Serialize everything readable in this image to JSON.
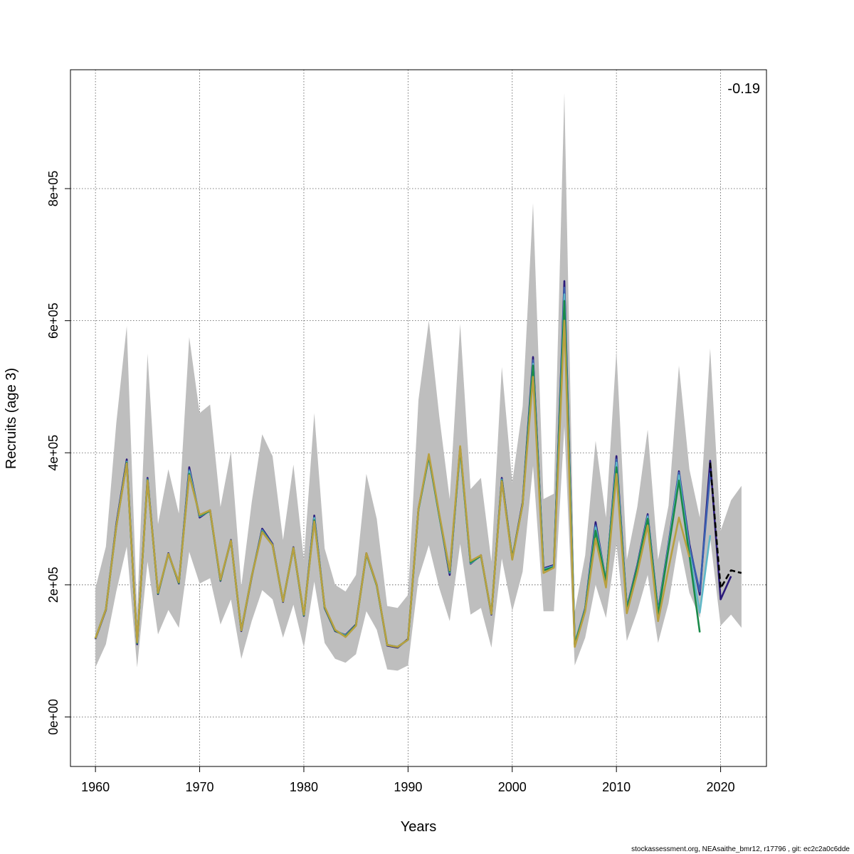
{
  "chart_data": {
    "type": "line",
    "xlabel": "Years",
    "ylabel": "Recruits (age 3)",
    "xlim": [
      1957.6,
      2024.4
    ],
    "ylim": [
      -75000,
      980000
    ],
    "x_ticks": [
      1960,
      1970,
      1980,
      1990,
      2000,
      2010,
      2020
    ],
    "x_tick_labels": [
      "1960",
      "1970",
      "1980",
      "1990",
      "2000",
      "2010",
      "2020"
    ],
    "y_ticks": [
      0,
      200000,
      400000,
      600000,
      800000
    ],
    "y_tick_labels": [
      "0e+00",
      "2e+05",
      "4e+05",
      "6e+05",
      "8e+05"
    ],
    "grid": true,
    "annotation": "-0.19",
    "footer": "stockassessment.org, NEAsaithe_bmr12, r17796 , git: ec2c2a0c6dde",
    "band": {
      "color": "#bebebe",
      "x": [
        1960,
        1961,
        1962,
        1963,
        1964,
        1965,
        1966,
        1967,
        1968,
        1969,
        1970,
        1971,
        1972,
        1973,
        1974,
        1975,
        1976,
        1977,
        1978,
        1979,
        1980,
        1981,
        1982,
        1983,
        1984,
        1985,
        1986,
        1987,
        1988,
        1989,
        1990,
        1991,
        1992,
        1993,
        1994,
        1995,
        1996,
        1997,
        1998,
        1999,
        2000,
        2001,
        2002,
        2003,
        2004,
        2005,
        2006,
        2007,
        2008,
        2009,
        2010,
        2011,
        2012,
        2013,
        2014,
        2015,
        2016,
        2017,
        2018,
        2019,
        2020,
        2021,
        2022
      ],
      "upper": [
        195000,
        258000,
        445000,
        592000,
        158000,
        550000,
        292000,
        375000,
        308000,
        575000,
        460000,
        473000,
        318000,
        402000,
        198000,
        325000,
        428000,
        395000,
        268000,
        382000,
        238000,
        460000,
        255000,
        200000,
        190000,
        215000,
        368000,
        300000,
        168000,
        165000,
        185000,
        480000,
        600000,
        455000,
        330000,
        595000,
        345000,
        362000,
        235000,
        530000,
        355000,
        470000,
        778000,
        330000,
        338000,
        945000,
        160000,
        245000,
        418000,
        302000,
        555000,
        238000,
        318000,
        435000,
        238000,
        320000,
        532000,
        375000,
        302000,
        558000,
        282000,
        328000,
        350000
      ],
      "lower": [
        75000,
        110000,
        190000,
        258000,
        75000,
        235000,
        125000,
        162000,
        135000,
        250000,
        202000,
        210000,
        140000,
        178000,
        88000,
        145000,
        192000,
        178000,
        120000,
        170000,
        105000,
        205000,
        112000,
        88000,
        82000,
        95000,
        160000,
        132000,
        72000,
        70000,
        78000,
        210000,
        260000,
        195000,
        145000,
        262000,
        155000,
        165000,
        105000,
        240000,
        160000,
        220000,
        380000,
        160000,
        160000,
        440000,
        78000,
        120000,
        200000,
        150000,
        262000,
        115000,
        160000,
        215000,
        112000,
        172000,
        268000,
        188000,
        150000,
        272000,
        138000,
        155000,
        135000
      ]
    },
    "series": [
      {
        "color": "#2b1a7a",
        "x": [
          1960,
          1961,
          1962,
          1963,
          1964,
          1965,
          1966,
          1967,
          1968,
          1969,
          1970,
          1971,
          1972,
          1973,
          1974,
          1975,
          1976,
          1977,
          1978,
          1979,
          1980,
          1981,
          1982,
          1983,
          1984,
          1985,
          1986,
          1987,
          1988,
          1989,
          1990,
          1991,
          1992,
          1993,
          1994,
          1995,
          1996,
          1997,
          1998,
          1999,
          2000,
          2001,
          2002,
          2003,
          2004,
          2005,
          2006,
          2007,
          2008,
          2009,
          2010,
          2011,
          2012,
          2013,
          2014,
          2015,
          2016,
          2017,
          2018,
          2019,
          2020,
          2021
        ],
        "values": [
          118000,
          162000,
          292000,
          390000,
          110000,
          362000,
          186000,
          248000,
          202000,
          378000,
          302000,
          313000,
          206000,
          268000,
          130000,
          212000,
          285000,
          262000,
          174000,
          257000,
          153000,
          305000,
          165000,
          130000,
          124000,
          140000,
          248000,
          200000,
          108000,
          105000,
          118000,
          315000,
          395000,
          305000,
          215000,
          408000,
          232000,
          245000,
          155000,
          362000,
          240000,
          325000,
          545000,
          225000,
          230000,
          660000,
          110000,
          165000,
          295000,
          205000,
          395000,
          165000,
          230000,
          307000,
          160000,
          262000,
          372000,
          262000,
          185000,
          388000,
          178000,
          213000
        ]
      },
      {
        "color": "#3b5fb0",
        "x": [
          1960,
          1961,
          1962,
          1963,
          1964,
          1965,
          1966,
          1967,
          1968,
          1969,
          1970,
          1971,
          1972,
          1973,
          1974,
          1975,
          1976,
          1977,
          1978,
          1979,
          1980,
          1981,
          1982,
          1983,
          1984,
          1985,
          1986,
          1987,
          1988,
          1989,
          1990,
          1991,
          1992,
          1993,
          1994,
          1995,
          1996,
          1997,
          1998,
          1999,
          2000,
          2001,
          2002,
          2003,
          2004,
          2005,
          2006,
          2007,
          2008,
          2009,
          2010,
          2011,
          2012,
          2013,
          2014,
          2015,
          2016,
          2017,
          2018,
          2019
        ],
        "values": [
          119000,
          163000,
          290000,
          387000,
          112000,
          360000,
          187000,
          247000,
          203000,
          374000,
          304000,
          312000,
          207000,
          267000,
          131000,
          213000,
          283000,
          261000,
          175000,
          256000,
          154000,
          302000,
          166000,
          131000,
          123000,
          139000,
          247000,
          199000,
          109000,
          106000,
          117000,
          314000,
          394000,
          304000,
          218000,
          406000,
          233000,
          244000,
          156000,
          360000,
          239000,
          323000,
          540000,
          224000,
          229000,
          650000,
          111000,
          164000,
          290000,
          206000,
          390000,
          164000,
          228000,
          305000,
          158000,
          260000,
          370000,
          258000,
          190000,
          370000
        ]
      },
      {
        "color": "#5fb8c8",
        "x": [
          1960,
          1961,
          1962,
          1963,
          1964,
          1965,
          1966,
          1967,
          1968,
          1969,
          1970,
          1971,
          1972,
          1973,
          1974,
          1975,
          1976,
          1977,
          1978,
          1979,
          1980,
          1981,
          1982,
          1983,
          1984,
          1985,
          1986,
          1987,
          1988,
          1989,
          1990,
          1991,
          1992,
          1993,
          1994,
          1995,
          1996,
          1997,
          1998,
          1999,
          2000,
          2001,
          2002,
          2003,
          2004,
          2005,
          2006,
          2007,
          2008,
          2009,
          2010,
          2011,
          2012,
          2013,
          2014,
          2015,
          2016,
          2017,
          2018,
          2019
        ],
        "values": [
          119000,
          163000,
          289000,
          386000,
          112000,
          359000,
          187000,
          247000,
          203000,
          372000,
          304000,
          312000,
          207000,
          267000,
          131000,
          213000,
          282000,
          260000,
          175000,
          256000,
          154000,
          301000,
          166000,
          131000,
          123000,
          139000,
          247000,
          199000,
          109000,
          106000,
          117000,
          314000,
          394000,
          304000,
          219000,
          405000,
          233000,
          244000,
          156000,
          359000,
          239000,
          322000,
          535000,
          223000,
          228000,
          640000,
          111000,
          163000,
          287000,
          206000,
          385000,
          163000,
          227000,
          303000,
          157000,
          258000,
          366000,
          250000,
          158000,
          275000
        ]
      },
      {
        "color": "#1a8a4a",
        "x": [
          1960,
          1961,
          1962,
          1963,
          1964,
          1965,
          1966,
          1967,
          1968,
          1969,
          1970,
          1971,
          1972,
          1973,
          1974,
          1975,
          1976,
          1977,
          1978,
          1979,
          1980,
          1981,
          1982,
          1983,
          1984,
          1985,
          1986,
          1987,
          1988,
          1989,
          1990,
          1991,
          1992,
          1993,
          1994,
          1995,
          1996,
          1997,
          1998,
          1999,
          2000,
          2001,
          2002,
          2003,
          2004,
          2005,
          2006,
          2007,
          2008,
          2009,
          2010,
          2011,
          2012,
          2013,
          2014,
          2015,
          2016,
          2017,
          2018
        ],
        "values": [
          119000,
          163000,
          288000,
          385000,
          112000,
          359000,
          187000,
          247000,
          203000,
          368000,
          305000,
          312000,
          207000,
          267000,
          131000,
          213000,
          281000,
          260000,
          175000,
          256000,
          154000,
          298000,
          166000,
          131000,
          122000,
          139000,
          247000,
          199000,
          109000,
          106000,
          117000,
          314000,
          395000,
          305000,
          220000,
          407000,
          234000,
          244000,
          156000,
          358000,
          240000,
          322000,
          532000,
          222000,
          227000,
          630000,
          110000,
          162000,
          282000,
          205000,
          378000,
          162000,
          226000,
          300000,
          155000,
          255000,
          358000,
          245000,
          128000
        ]
      },
      {
        "color": "#b8a040",
        "x": [
          1960,
          1961,
          1962,
          1963,
          1964,
          1965,
          1966,
          1967,
          1968,
          1969,
          1970,
          1971,
          1972,
          1973,
          1974,
          1975,
          1976,
          1977,
          1978,
          1979,
          1980,
          1981,
          1982,
          1983,
          1984,
          1985,
          1986,
          1987,
          1988,
          1989,
          1990,
          1991,
          1992,
          1993,
          1994,
          1995,
          1996,
          1997,
          1998,
          1999,
          2000,
          2001,
          2002,
          2003,
          2004,
          2005,
          2006,
          2007,
          2008,
          2009,
          2010,
          2011,
          2012,
          2013,
          2014,
          2015,
          2016,
          2017
        ],
        "values": [
          119000,
          163000,
          288000,
          384000,
          113000,
          358000,
          188000,
          247000,
          204000,
          366000,
          306000,
          313000,
          208000,
          267000,
          131000,
          213000,
          280000,
          260000,
          175000,
          256000,
          155000,
          296000,
          167000,
          132000,
          121000,
          138000,
          248000,
          200000,
          109000,
          106000,
          117000,
          315000,
          398000,
          307000,
          222000,
          410000,
          236000,
          245000,
          156000,
          357000,
          238000,
          322000,
          515000,
          218000,
          226000,
          600000,
          106000,
          160000,
          270000,
          196000,
          368000,
          157000,
          218000,
          290000,
          145000,
          225000,
          302000,
          242000
        ]
      },
      {
        "color": "#000000",
        "dashed": true,
        "x": [
          2019,
          2020,
          2021,
          2022
        ],
        "values": [
          385000,
          195000,
          222000,
          218000
        ]
      }
    ]
  }
}
